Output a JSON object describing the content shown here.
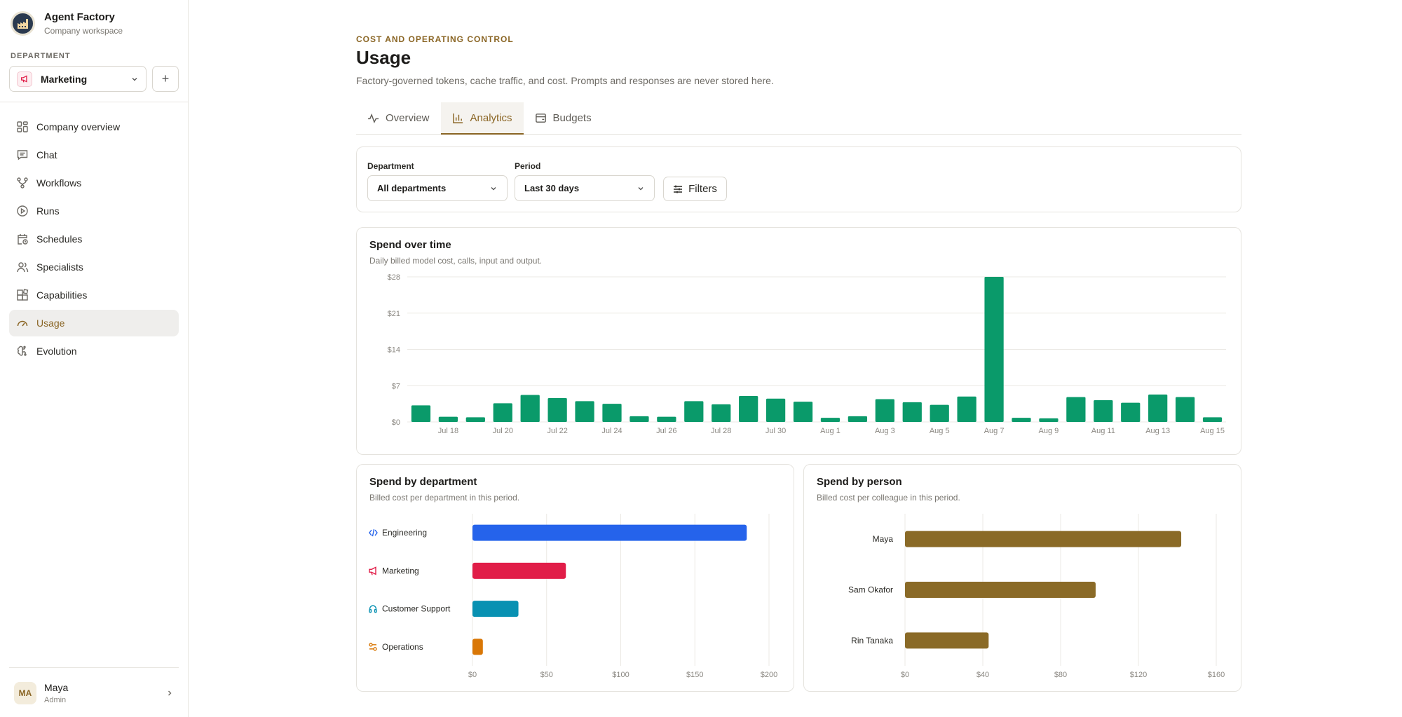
{
  "brand": {
    "name": "Agent Factory",
    "subtitle": "Company workspace"
  },
  "sidebar": {
    "department_label": "DEPARTMENT",
    "department_selected": "Marketing",
    "add_label": "+",
    "items": [
      {
        "label": "Company overview",
        "icon": "grid-icon"
      },
      {
        "label": "Chat",
        "icon": "chat-icon"
      },
      {
        "label": "Workflows",
        "icon": "workflow-icon"
      },
      {
        "label": "Runs",
        "icon": "play-icon"
      },
      {
        "label": "Schedules",
        "icon": "calendar-clock-icon"
      },
      {
        "label": "Specialists",
        "icon": "users-icon"
      },
      {
        "label": "Capabilities",
        "icon": "blocks-icon"
      },
      {
        "label": "Usage",
        "icon": "gauge-icon",
        "active": true
      },
      {
        "label": "Evolution",
        "icon": "brain-icon"
      }
    ],
    "user": {
      "initials": "MA",
      "name": "Maya",
      "role": "Admin"
    }
  },
  "header": {
    "eyebrow": "COST AND OPERATING CONTROL",
    "title": "Usage",
    "subtitle": "Factory-governed tokens, cache traffic, and cost. Prompts and responses are never stored here."
  },
  "tabs": [
    {
      "label": "Overview",
      "icon": "activity-icon"
    },
    {
      "label": "Analytics",
      "icon": "bar-chart-icon",
      "active": true
    },
    {
      "label": "Budgets",
      "icon": "wallet-icon"
    }
  ],
  "filters": {
    "department_label": "Department",
    "department_value": "All departments",
    "period_label": "Period",
    "period_value": "Last 30 days",
    "filters_button": "Filters"
  },
  "colors": {
    "accent": "#8a6524",
    "green": "#0a9a6a",
    "engineering": "#2563eb",
    "marketing": "#e11d48",
    "support": "#0891b2",
    "operations": "#d97706",
    "person": "#8a6a27"
  },
  "spend_over_time": {
    "title": "Spend over time",
    "subtitle": "Daily billed model cost, calls, input and output."
  },
  "spend_by_department": {
    "title": "Spend by department",
    "subtitle": "Billed cost per department in this period."
  },
  "spend_by_person": {
    "title": "Spend by person",
    "subtitle": "Billed cost per colleague in this period."
  },
  "chart_data": [
    {
      "type": "bar",
      "title": "Spend over time",
      "x": [
        "Jul 17",
        "Jul 18",
        "Jul 19",
        "Jul 20",
        "Jul 21",
        "Jul 22",
        "Jul 23",
        "Jul 24",
        "Jul 25",
        "Jul 26",
        "Jul 27",
        "Jul 28",
        "Jul 29",
        "Jul 30",
        "Jul 31",
        "Aug 1",
        "Aug 2",
        "Aug 3",
        "Aug 4",
        "Aug 5",
        "Aug 6",
        "Aug 7",
        "Aug 8",
        "Aug 9",
        "Aug 10",
        "Aug 11",
        "Aug 12",
        "Aug 13",
        "Aug 14",
        "Aug 15"
      ],
      "tick_labels": [
        "Jul 18",
        "Jul 20",
        "Jul 22",
        "Jul 24",
        "Jul 26",
        "Jul 28",
        "Jul 30",
        "Aug 1",
        "Aug 3",
        "Aug 5",
        "Aug 7",
        "Aug 9",
        "Aug 11",
        "Aug 13",
        "Aug 15"
      ],
      "values": [
        3.2,
        1.0,
        0.9,
        3.6,
        5.2,
        4.6,
        4.0,
        3.5,
        1.1,
        1.0,
        4.0,
        3.4,
        5.0,
        4.5,
        3.9,
        0.8,
        1.1,
        4.4,
        3.8,
        3.3,
        4.9,
        28.0,
        0.8,
        0.7,
        4.8,
        4.2,
        3.7,
        5.3,
        4.8,
        0.9
      ],
      "yticks": [
        "$0",
        "$7",
        "$14",
        "$21",
        "$28"
      ],
      "ylim": [
        0,
        28
      ],
      "grid": true
    },
    {
      "type": "bar",
      "orientation": "horizontal",
      "title": "Spend by department",
      "categories": [
        "Engineering",
        "Marketing",
        "Customer Support",
        "Operations"
      ],
      "values": [
        185,
        63,
        31,
        7
      ],
      "xticks": [
        "$0",
        "$50",
        "$100",
        "$150",
        "$200"
      ],
      "xlim": [
        0,
        200
      ],
      "grid": true
    },
    {
      "type": "bar",
      "orientation": "horizontal",
      "title": "Spend by person",
      "categories": [
        "Maya",
        "Sam Okafor",
        "Rin Tanaka"
      ],
      "values": [
        142,
        98,
        43
      ],
      "xticks": [
        "$0",
        "$40",
        "$80",
        "$120",
        "$160"
      ],
      "xlim": [
        0,
        160
      ],
      "grid": true
    }
  ]
}
